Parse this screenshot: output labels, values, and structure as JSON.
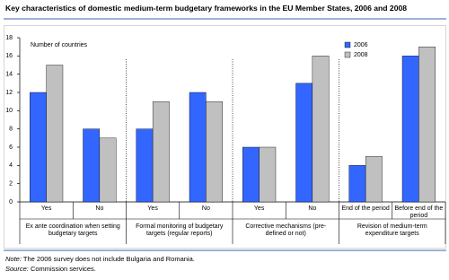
{
  "chart_data": {
    "type": "bar",
    "title": "Key characteristics of domestic medium-term budgetary frameworks in the EU Member States, 2006 and 2008",
    "y_label": "Number of countries",
    "categories": [
      "Yes",
      "No",
      "Yes",
      "No",
      "Yes",
      "No",
      "End of the period",
      "Before end of the period"
    ],
    "groups": [
      "Ex ante coordination when setting budgetary targets",
      "Formal monitoring of budgetary targets (regular reports)",
      "Corrective mechanisms (pre-defined or not)",
      "Revision of medium-term expenditure targets"
    ],
    "series": [
      {
        "name": "2006",
        "color": "#3366ff",
        "values": [
          12,
          8,
          8,
          12,
          6,
          13,
          4,
          16
        ]
      },
      {
        "name": "2008",
        "color": "#c0c0c0",
        "values": [
          15,
          7,
          11,
          11,
          6,
          16,
          5,
          17
        ]
      }
    ],
    "ylim": [
      0,
      18
    ],
    "yticks": [
      0,
      2,
      4,
      6,
      8,
      10,
      12,
      14,
      16,
      18
    ],
    "grid": false,
    "legend": "top-right"
  },
  "notes": [
    {
      "label": "Note:",
      "text": "The 2006 survey does not include Bulgaria and Romania."
    },
    {
      "label": "Source:",
      "text": "Commission services."
    }
  ]
}
